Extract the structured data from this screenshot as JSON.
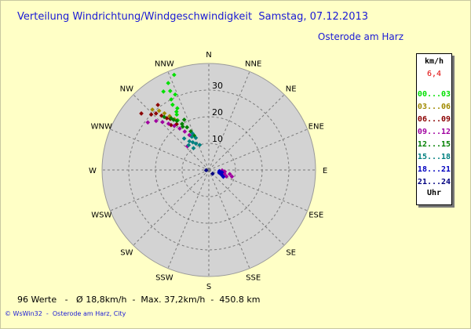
{
  "header": {
    "title": "Verteilung Windrichtung/Windgeschwindigkeit  Samstag, 07.12.2013",
    "location": "Osterode am Harz"
  },
  "legend": {
    "unit": "km/h",
    "current": "6,4",
    "bands": [
      {
        "label": "00...03",
        "color": "#00e000"
      },
      {
        "label": "03...06",
        "color": "#a08a00"
      },
      {
        "label": "06...09",
        "color": "#8b0000"
      },
      {
        "label": "09...12",
        "color": "#a000a0"
      },
      {
        "label": "12...15",
        "color": "#008000"
      },
      {
        "label": "15...18",
        "color": "#008080"
      },
      {
        "label": "18...21",
        "color": "#0000c0"
      },
      {
        "label": "21...24",
        "color": "#000080"
      }
    ],
    "time_label": "Uhr"
  },
  "footer": {
    "stats": "96 Werte   -   Ø 18,8km/h  -  Max. 37,2km/h  -  450.8 km",
    "copyright": "© WsWin32  -  Osterode am Harz, City"
  },
  "chart_data": {
    "type": "scatter",
    "projection": "polar",
    "directions": [
      "N",
      "NNE",
      "NE",
      "ENE",
      "E",
      "ESE",
      "SE",
      "SSE",
      "S",
      "SSW",
      "SW",
      "WSW",
      "W",
      "WNW",
      "NW",
      "NNW"
    ],
    "radial_ticks": [
      "10",
      "20",
      "30"
    ],
    "rmax": 40,
    "grid": true,
    "series": [
      {
        "band": "00...03",
        "color": "#00e000",
        "points": [
          [
            335,
            36
          ],
          [
            334,
            33
          ],
          [
            340,
            38
          ],
          [
            332,
            30
          ],
          [
            331,
            28
          ],
          [
            330,
            34
          ],
          [
            336,
            31
          ],
          [
            333,
            26
          ],
          [
            330,
            24
          ],
          [
            328,
            22
          ],
          [
            331,
            25
          ]
        ]
      },
      {
        "band": "03...06",
        "color": "#a08a00",
        "points": [
          [
            317,
            31
          ],
          [
            320,
            29
          ],
          [
            322,
            27
          ],
          [
            324,
            25
          ],
          [
            326,
            23
          ]
        ]
      },
      {
        "band": "06...09",
        "color": "#8b0000",
        "points": [
          [
            310,
            33
          ],
          [
            314,
            30
          ],
          [
            317,
            29
          ],
          [
            319,
            27
          ],
          [
            321,
            25
          ],
          [
            323,
            24
          ],
          [
            320,
            22
          ],
          [
            325,
            21
          ],
          [
            322,
            31
          ]
        ]
      },
      {
        "band": "09...12",
        "color": "#a000a0",
        "points": [
          [
            308,
            29
          ],
          [
            313,
            27
          ],
          [
            316,
            25
          ],
          [
            319,
            23
          ],
          [
            322,
            21
          ],
          [
            325,
            19
          ],
          [
            328,
            17
          ],
          [
            331,
            15
          ],
          [
            318,
            12
          ],
          [
            96,
            6
          ],
          [
            101,
            8
          ],
          [
            106,
            9
          ],
          [
            110,
            7
          ],
          [
            92,
            5
          ],
          [
            104,
            6
          ]
        ]
      },
      {
        "band": "12...15",
        "color": "#008000",
        "points": [
          [
            320,
            26
          ],
          [
            324,
            24
          ],
          [
            327,
            22
          ],
          [
            330,
            20
          ],
          [
            333,
            18
          ],
          [
            335,
            16
          ],
          [
            337,
            14
          ],
          [
            325,
            23
          ],
          [
            329,
            19
          ],
          [
            334,
            21
          ]
        ]
      },
      {
        "band": "15...18",
        "color": "#008080",
        "points": [
          [
            322,
            15
          ],
          [
            326,
            13
          ],
          [
            330,
            12
          ],
          [
            334,
            11
          ],
          [
            338,
            13
          ],
          [
            340,
            10
          ],
          [
            325,
            10
          ],
          [
            321,
            12
          ],
          [
            336,
            15
          ],
          [
            333,
            14
          ]
        ]
      },
      {
        "band": "18...21",
        "color": "#0000c0",
        "points": [
          [
            96,
            4
          ],
          [
            100,
            5
          ],
          [
            104,
            4
          ],
          [
            110,
            5
          ],
          [
            115,
            6
          ]
        ]
      },
      {
        "band": "21...24",
        "color": "#000080",
        "points": [
          [
            264,
            1
          ],
          [
            135,
            2
          ]
        ]
      }
    ]
  }
}
